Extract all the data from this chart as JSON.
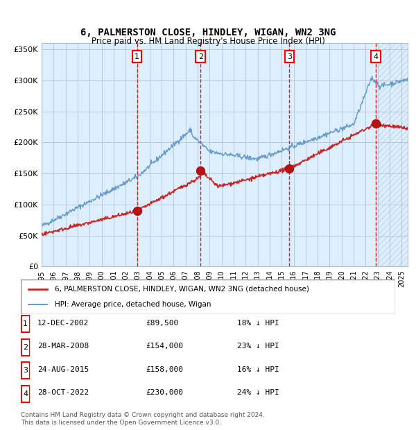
{
  "title": "6, PALMERSTON CLOSE, HINDLEY, WIGAN, WN2 3NG",
  "subtitle": "Price paid vs. HM Land Registry's House Price Index (HPI)",
  "xlabel": "",
  "ylabel": "",
  "ylim": [
    0,
    360000
  ],
  "yticks": [
    0,
    50000,
    100000,
    150000,
    200000,
    250000,
    300000,
    350000
  ],
  "ytick_labels": [
    "£0",
    "£50K",
    "£100K",
    "£150K",
    "£200K",
    "£250K",
    "£300K",
    "£350K"
  ],
  "hpi_color": "#6699cc",
  "price_color": "#cc2222",
  "sale_marker_color": "#bb1111",
  "vline_color": "#cc2222",
  "bg_color": "#ddeeff",
  "hatch_color": "#bbccdd",
  "grid_color": "#aabbcc",
  "purchases": [
    {
      "num": 1,
      "date": "12-DEC-2002",
      "price": 89500,
      "pct": "18%",
      "x_year": 2002.95
    },
    {
      "num": 2,
      "date": "28-MAR-2008",
      "price": 154000,
      "pct": "23%",
      "x_year": 2008.24
    },
    {
      "num": 3,
      "date": "24-AUG-2015",
      "price": 158000,
      "pct": "16%",
      "x_year": 2015.65
    },
    {
      "num": 4,
      "date": "28-OCT-2022",
      "price": 230000,
      "pct": "24%",
      "x_year": 2022.83
    }
  ],
  "legend_line1": "6, PALMERSTON CLOSE, HINDLEY, WIGAN, WN2 3NG (detached house)",
  "legend_line2": "HPI: Average price, detached house, Wigan",
  "footer": "Contains HM Land Registry data © Crown copyright and database right 2024.\nThis data is licensed under the Open Government Licence v3.0.",
  "xmin": 1995.0,
  "xmax": 2025.5
}
